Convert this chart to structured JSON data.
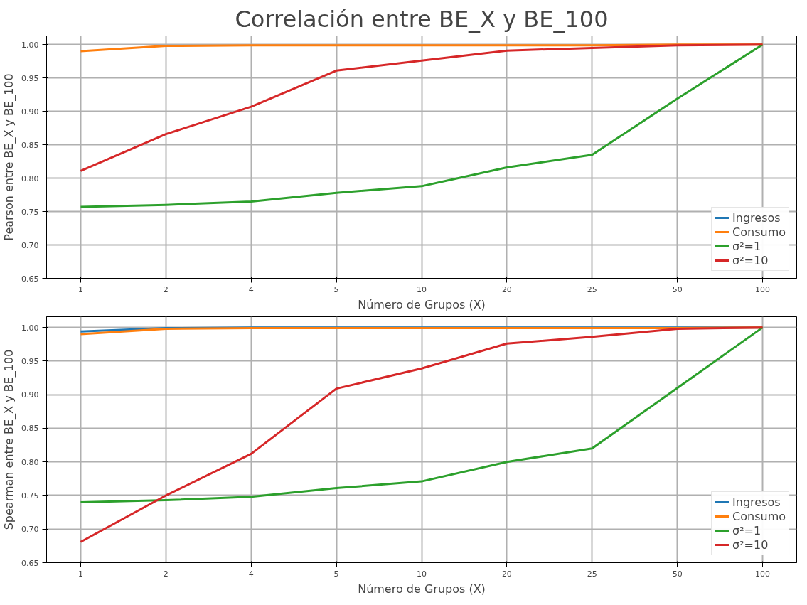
{
  "chart_data": [
    {
      "type": "line",
      "title": "Correlación entre BE_X y BE_100",
      "xlabel": "Número de Grupos (X)",
      "ylabel": "Pearson entre BE_X y BE_100",
      "categories": [
        "1",
        "2",
        "4",
        "5",
        "10",
        "20",
        "25",
        "50",
        "100"
      ],
      "series": [
        {
          "name": "Ingresos",
          "color": "#1f77b4",
          "values": [
            null,
            null,
            null,
            null,
            null,
            null,
            null,
            null,
            null
          ]
        },
        {
          "name": "Consumo",
          "color": "#ff7f0e",
          "values": [
            0.99,
            0.998,
            0.999,
            0.999,
            0.999,
            0.999,
            0.999,
            1.0,
            1.0
          ]
        },
        {
          "name": "σ²=1",
          "color": "#2ca02c",
          "values": [
            0.757,
            0.76,
            0.765,
            0.778,
            0.788,
            0.816,
            0.835,
            0.919,
            1.0
          ]
        },
        {
          "name": "σ²=10",
          "color": "#d62728",
          "values": [
            0.811,
            0.866,
            0.907,
            0.961,
            0.976,
            0.991,
            0.995,
            0.999,
            1.0
          ]
        }
      ],
      "ylim": [
        0.65,
        1.013
      ],
      "yticks": [
        {
          "value": 0.65,
          "label": "0.65"
        },
        {
          "value": 0.7,
          "label": "0.70"
        },
        {
          "value": 0.75,
          "label": "0.75"
        },
        {
          "value": 0.8,
          "label": "0.80"
        },
        {
          "value": 0.85,
          "label": "0.85"
        },
        {
          "value": 0.9,
          "label": "0.90"
        },
        {
          "value": 0.95,
          "label": "0.95"
        },
        {
          "value": 1.0,
          "label": "1.00"
        }
      ],
      "grid": true,
      "legend": "bottom right",
      "line_style": "solid",
      "marker": "none"
    },
    {
      "type": "line",
      "xlabel": "Número de Grupos (X)",
      "ylabel": "Spearman entre BE_X y BE_100",
      "categories": [
        "1",
        "2",
        "4",
        "5",
        "10",
        "20",
        "25",
        "50",
        "100"
      ],
      "series": [
        {
          "name": "Ingresos",
          "color": "#1f77b4",
          "values": [
            0.994,
            0.999,
            1.0,
            1.0,
            1.0,
            1.0,
            1.0,
            1.0,
            1.0
          ]
        },
        {
          "name": "Consumo",
          "color": "#ff7f0e",
          "values": [
            0.99,
            0.998,
            0.999,
            0.999,
            0.999,
            0.999,
            0.999,
            0.999,
            1.0
          ]
        },
        {
          "name": "σ²=1",
          "color": "#2ca02c",
          "values": [
            0.74,
            0.743,
            0.748,
            0.761,
            0.771,
            0.8,
            0.82,
            0.91,
            1.0
          ]
        },
        {
          "name": "σ²=10",
          "color": "#d62728",
          "values": [
            0.681,
            0.75,
            0.812,
            0.909,
            0.939,
            0.976,
            0.986,
            0.998,
            1.0
          ]
        }
      ],
      "ylim": [
        0.65,
        1.016
      ],
      "yticks": [
        {
          "value": 0.65,
          "label": "0.65"
        },
        {
          "value": 0.7,
          "label": "0.70"
        },
        {
          "value": 0.75,
          "label": "0.75"
        },
        {
          "value": 0.8,
          "label": "0.80"
        },
        {
          "value": 0.85,
          "label": "0.85"
        },
        {
          "value": 0.9,
          "label": "0.90"
        },
        {
          "value": 0.95,
          "label": "0.95"
        },
        {
          "value": 1.0,
          "label": "1.00"
        }
      ],
      "grid": true,
      "legend": "bottom right",
      "line_style": "solid",
      "marker": "none"
    }
  ]
}
